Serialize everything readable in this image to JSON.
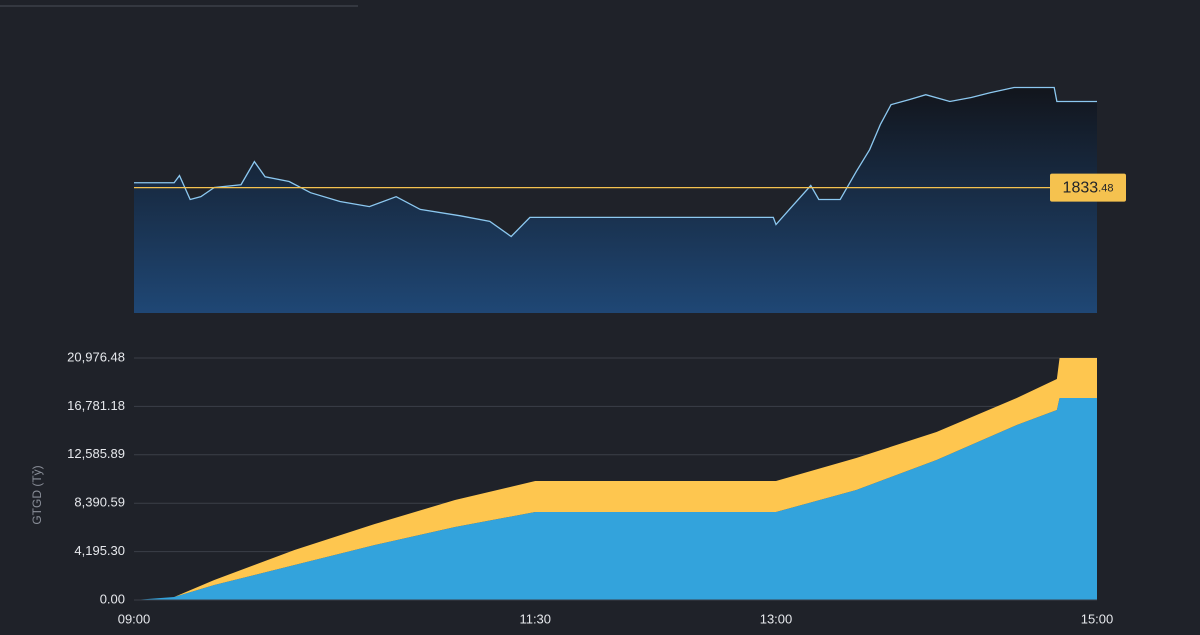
{
  "chart_data": [
    {
      "type": "line",
      "x": [
        "09:00",
        "09:15",
        "09:17",
        "09:21",
        "09:25",
        "09:30",
        "09:40",
        "09:45",
        "09:49",
        "09:58",
        "10:06",
        "10:17",
        "10:28",
        "10:38",
        "10:47",
        "11:02",
        "11:13",
        "11:21",
        "11:28",
        "12:59",
        "13:00",
        "13:05",
        "13:13",
        "13:16",
        "13:24",
        "13:30",
        "13:35",
        "13:39",
        "13:43",
        "13:50",
        "13:56",
        "14:05",
        "14:13",
        "14:20",
        "14:29",
        "14:44",
        "14:45",
        "15:00"
      ],
      "series": [
        {
          "color": "#8cc8f0",
          "values": [
            1834.7,
            1834.7,
            1836.5,
            1830.5,
            1831.2,
            1833.5,
            1834.2,
            1840.0,
            1836.2,
            1835.0,
            1832.2,
            1830.0,
            1828.7,
            1831.2,
            1828.0,
            1826.4,
            1825.0,
            1821.2,
            1826.0,
            1826.0,
            1824.2,
            1828.0,
            1834.0,
            1830.5,
            1830.5,
            1837.5,
            1843.0,
            1849.3,
            1854.3,
            1855.6,
            1856.8,
            1855.1,
            1856.1,
            1857.3,
            1858.6,
            1858.6,
            1855.1,
            1855.1
          ]
        }
      ],
      "xlim": [
        "09:00",
        "15:00"
      ],
      "ylim": [
        1802,
        1863
      ],
      "reference_line": 1833.48,
      "reference_color": "#f5c24f"
    },
    {
      "type": "stacked-area",
      "y_label": "GTGD (Tỷ)",
      "x": [
        "09:00",
        "09:15",
        "09:30",
        "10:00",
        "10:30",
        "11:00",
        "11:30",
        "13:00",
        "13:30",
        "14:00",
        "14:30",
        "14:45",
        "14:46",
        "15:00"
      ],
      "series": [
        {
          "color": "#33a3dc",
          "values": [
            0,
            260,
            1300,
            3034,
            4767,
            6327,
            7628,
            7628,
            9534,
            12135,
            15169,
            16469,
            17509,
            17509
          ]
        },
        {
          "color": "#fec64f",
          "values": [
            0,
            0,
            433,
            1300,
            1820,
            2340,
            2687,
            2687,
            2774,
            2427,
            2340,
            2687,
            3467,
            3467
          ]
        }
      ],
      "xlim": [
        "09:00",
        "15:00"
      ],
      "xticks": [
        "09:00",
        "11:30",
        "13:00",
        "15:00"
      ],
      "ylim": [
        0,
        20976.48
      ],
      "yticks": [
        {
          "value": 0,
          "label": "0.00"
        },
        {
          "value": 4195.3,
          "label": "4,195.30"
        },
        {
          "value": 8390.59,
          "label": "8,390.59"
        },
        {
          "value": 12585.89,
          "label": "12,585.89"
        },
        {
          "value": 16781.18,
          "label": "16,781.18"
        },
        {
          "value": 20976.48,
          "label": "20,976.48"
        }
      ],
      "grid": true
    }
  ]
}
